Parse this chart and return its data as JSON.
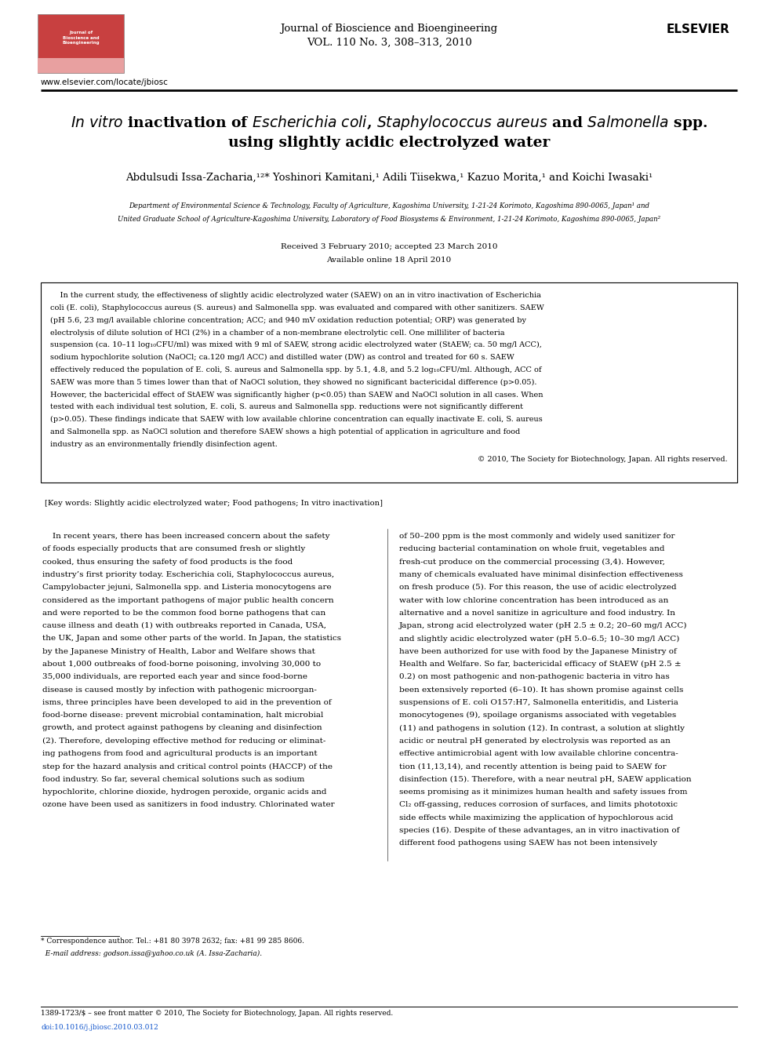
{
  "bg": "#ffffff",
  "pw": 9.92,
  "ph": 13.23,
  "dpi": 100,
  "journal_name": "Journal of Bioscience and Bioengineering",
  "journal_vol": "VOL. 110 No. 3, 308–313, 2010",
  "url": "www.elsevier.com/locate/jbiosc",
  "title1_plain": "inactivation of ",
  "title1_italic1": "Escherichia coli",
  "title1_mid": ", ",
  "title1_italic2": "Staphylococcus aureus",
  "title1_mid2": " and ",
  "title1_italic3": "Salmonella",
  "title1_end": " spp.",
  "title2": "using slightly acidic electrolyzed water",
  "authors": "Abdulsudi Issa-Zacharia,¹²* Yoshinori Kamitani,¹ Adili Tiisekwa,¹ Kazuo Morita,¹ and Koichi Iwasaki¹",
  "affil1": "Department of Environmental Science & Technology, Faculty of Agriculture, Kagoshima University, 1-21-24 Korimoto, Kagoshima 890-0065, Japan¹ and",
  "affil2": "United Graduate School of Agriculture-Kagoshima University, Laboratory of Food Biosystems & Environment, 1-21-24 Korimoto, Kagoshima 890-0065, Japan²",
  "received": "Received 3 February 2010; accepted 23 March 2010",
  "available": "Available online 18 April 2010",
  "abstract_lines": [
    "    In the current study, the effectiveness of slightly acidic electrolyzed water (SAEW) on an in vitro inactivation of Escherichia",
    "coli (E. coli), Staphylococcus aureus (S. aureus) and Salmonella spp. was evaluated and compared with other sanitizers. SAEW",
    "(pH 5.6, 23 mg/l available chlorine concentration; ACC; and 940 mV oxidation reduction potential; ORP) was generated by",
    "electrolysis of dilute solution of HCl (2%) in a chamber of a non-membrane electrolytic cell. One milliliter of bacteria",
    "suspension (ca. 10–11 log₁₀CFU/ml) was mixed with 9 ml of SAEW, strong acidic electrolyzed water (StAEW; ca. 50 mg/l ACC),",
    "sodium hypochlorite solution (NaOCl; ca.120 mg/l ACC) and distilled water (DW) as control and treated for 60 s. SAEW",
    "effectively reduced the population of E. coli, S. aureus and Salmonella spp. by 5.1, 4.8, and 5.2 log₁₀CFU/ml. Although, ACC of",
    "SAEW was more than 5 times lower than that of NaOCl solution, they showed no significant bactericidal difference (p>0.05).",
    "However, the bactericidal effect of StAEW was significantly higher (p<0.05) than SAEW and NaOCl solution in all cases. When",
    "tested with each individual test solution, E. coli, S. aureus and Salmonella spp. reductions were not significantly different",
    "(p>0.05). These findings indicate that SAEW with low available chlorine concentration can equally inactivate E. coli, S. aureus",
    "and Salmonella spp. as NaOCl solution and therefore SAEW shows a high potential of application in agriculture and food",
    "industry as an environmentally friendly disinfection agent."
  ],
  "copyright": "© 2010, The Society for Biotechnology, Japan. All rights reserved.",
  "keywords": "[Key words: Slightly acidic electrolyzed water; Food pathogens; In vitro inactivation]",
  "col1_lines": [
    "    In recent years, there has been increased concern about the safety",
    "of foods especially products that are consumed fresh or slightly",
    "cooked, thus ensuring the safety of food products is the food",
    "industry’s first priority today. Escherichia coli, Staphylococcus aureus,",
    "Campylobacter jejuni, Salmonella spp. and Listeria monocytogens are",
    "considered as the important pathogens of major public health concern",
    "and were reported to be the common food borne pathogens that can",
    "cause illness and death (1) with outbreaks reported in Canada, USA,",
    "the UK, Japan and some other parts of the world. In Japan, the statistics",
    "by the Japanese Ministry of Health, Labor and Welfare shows that",
    "about 1,000 outbreaks of food-borne poisoning, involving 30,000 to",
    "35,000 individuals, are reported each year and since food-borne",
    "disease is caused mostly by infection with pathogenic microorgan-",
    "isms, three principles have been developed to aid in the prevention of",
    "food-borne disease: prevent microbial contamination, halt microbial",
    "growth, and protect against pathogens by cleaning and disinfection",
    "(2). Therefore, developing effective method for reducing or eliminat-",
    "ing pathogens from food and agricultural products is an important",
    "step for the hazard analysis and critical control points (HACCP) of the",
    "food industry. So far, several chemical solutions such as sodium",
    "hypochlorite, chlorine dioxide, hydrogen peroxide, organic acids and",
    "ozone have been used as sanitizers in food industry. Chlorinated water"
  ],
  "col2_lines": [
    "of 50–200 ppm is the most commonly and widely used sanitizer for",
    "reducing bacterial contamination on whole fruit, vegetables and",
    "fresh-cut produce on the commercial processing (3,4). However,",
    "many of chemicals evaluated have minimal disinfection effectiveness",
    "on fresh produce (5). For this reason, the use of acidic electrolyzed",
    "water with low chlorine concentration has been introduced as an",
    "alternative and a novel sanitize in agriculture and food industry. In",
    "Japan, strong acid electrolyzed water (pH 2.5 ± 0.2; 20–60 mg/l ACC)",
    "and slightly acidic electrolyzed water (pH 5.0–6.5; 10–30 mg/l ACC)",
    "have been authorized for use with food by the Japanese Ministry of",
    "Health and Welfare. So far, bactericidal efficacy of StAEW (pH 2.5 ±",
    "0.2) on most pathogenic and non-pathogenic bacteria in vitro has",
    "been extensively reported (6–10). It has shown promise against cells",
    "suspensions of E. coli O157:H7, Salmonella enteritidis, and Listeria",
    "monocytogenes (9), spoilage organisms associated with vegetables",
    "(11) and pathogens in solution (12). In contrast, a solution at slightly",
    "acidic or neutral pH generated by electrolysis was reported as an",
    "effective antimicrobial agent with low available chlorine concentra-",
    "tion (11,13,14), and recently attention is being paid to SAEW for",
    "disinfection (15). Therefore, with a near neutral pH, SAEW application",
    "seems promising as it minimizes human health and safety issues from",
    "Cl₂ off-gassing, reduces corrosion of surfaces, and limits phototoxic",
    "side effects while maximizing the application of hypochlorous acid",
    "species (16). Despite of these advantages, an in vitro inactivation of",
    "different food pathogens using SAEW has not been intensively"
  ],
  "fn_line1": "* Correspondence author. Tel.: +81 80 3978 2632; fax: +81 99 285 8606.",
  "fn_line2": "  E-mail address: godson.issa@yahoo.co.uk (A. Issa-Zacharia).",
  "footer1": "1389-1723/$ – see front matter © 2010, The Society for Biotechnology, Japan. All rights reserved.",
  "footer2": "doi:10.1016/j.jbiosc.2010.03.012",
  "footer2_color": "#1155cc"
}
